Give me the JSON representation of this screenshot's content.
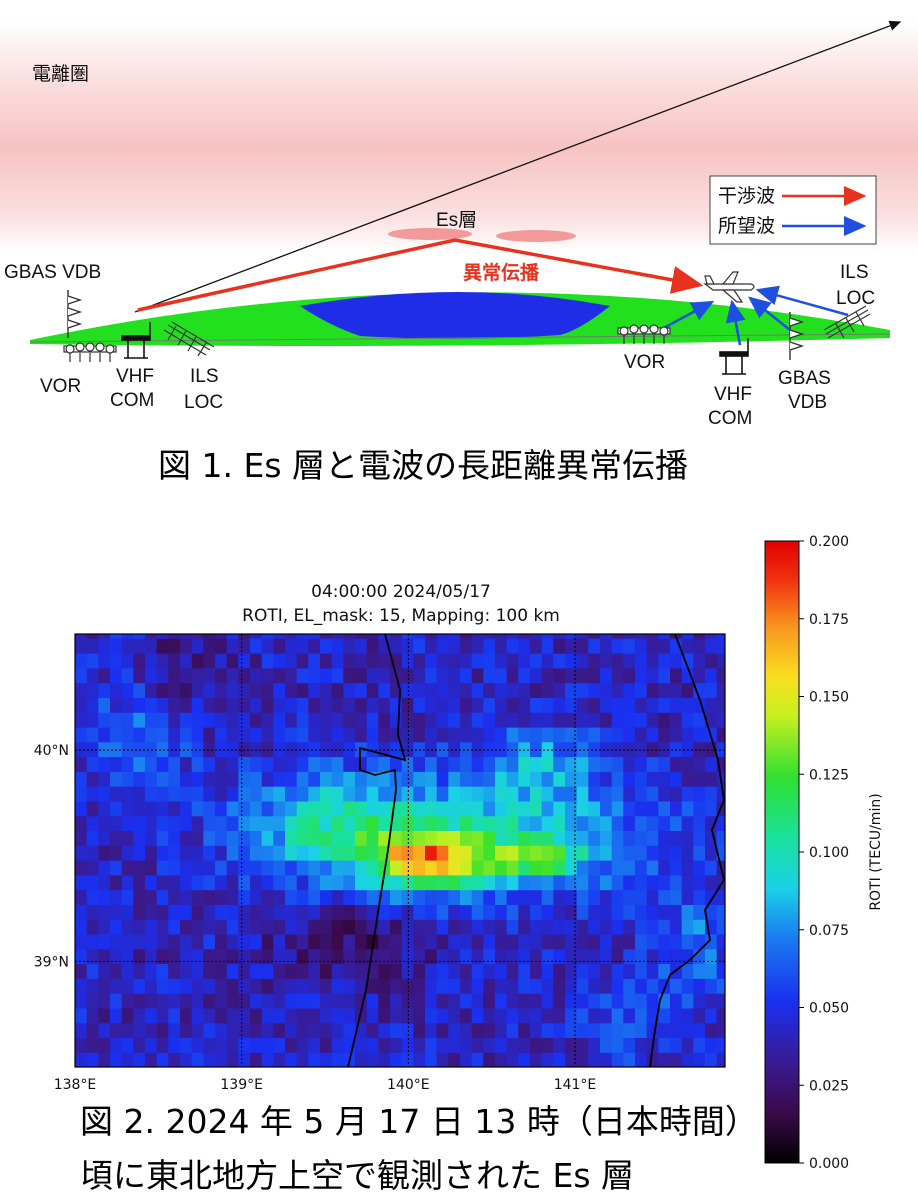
{
  "figure1": {
    "ionosphere_label": "電離圏",
    "es_label": "Es層",
    "anomalous_label": "異常伝播",
    "legend": {
      "interference": "干渉波",
      "desired": "所望波"
    },
    "left_station": {
      "gbas": "GBAS VDB",
      "vor": "VOR",
      "vhf_line1": "VHF",
      "vhf_line2": "COM",
      "ils_line1": "ILS",
      "ils_line2": "LOC"
    },
    "right_station": {
      "ils_line1": "ILS",
      "ils_line2": "LOC",
      "vor": "VOR",
      "vhf_line1": "VHF",
      "vhf_line2": "COM",
      "gbas_line1": "GBAS",
      "gbas_line2": "VDB"
    },
    "caption": "図 1. Es 層と電波の長距離異常伝播",
    "colors": {
      "interference": "#e8321e",
      "desired": "#1e4fe0",
      "ground": "#22e01e",
      "sea": "#1f2ee6",
      "ionosphere": "#f5a9a9"
    }
  },
  "figure2": {
    "title_line1": "04:00:00 2024/05/17",
    "title_line2": "ROTI, EL_mask: 15, Mapping: 100 km",
    "caption_line1": "図 2. 2024 年 5 月 17 日 13 時（日本時間）",
    "caption_line2": "頃に東北地方上空で観測された Es 層",
    "x_ticks": [
      "138°E",
      "139°E",
      "140°E",
      "141°E"
    ],
    "y_ticks": [
      "40°N",
      "39°N"
    ],
    "colorbar_ticks": [
      "0.200",
      "0.175",
      "0.150",
      "0.125",
      "0.100",
      "0.075",
      "0.050",
      "0.025",
      "0.000"
    ],
    "colorbar_label": "ROTI (TECU/min)"
  },
  "chart_data": {
    "type": "heatmap",
    "title": "04:00:00 2024/05/17",
    "subtitle": "ROTI, EL_mask: 15, Mapping: 100 km",
    "xlabel": "",
    "ylabel": "",
    "x_ticks": [
      138,
      139,
      140,
      141
    ],
    "y_ticks": [
      39,
      40
    ],
    "xlim": [
      138,
      141.9
    ],
    "ylim": [
      38.5,
      40.55
    ],
    "colorbar": {
      "label": "ROTI (TECU/min)",
      "range": [
        0,
        0.2
      ],
      "ticks": [
        0,
        0.025,
        0.05,
        0.075,
        0.1,
        0.125,
        0.15,
        0.175,
        0.2
      ]
    },
    "features": [
      {
        "description": "Es layer band",
        "lon_range": [
          139.0,
          141.2
        ],
        "lat_range": [
          39.3,
          39.8
        ],
        "peak_roti": 0.2,
        "peak_lon": 140.1,
        "peak_lat": 39.45
      }
    ],
    "grid": true
  }
}
